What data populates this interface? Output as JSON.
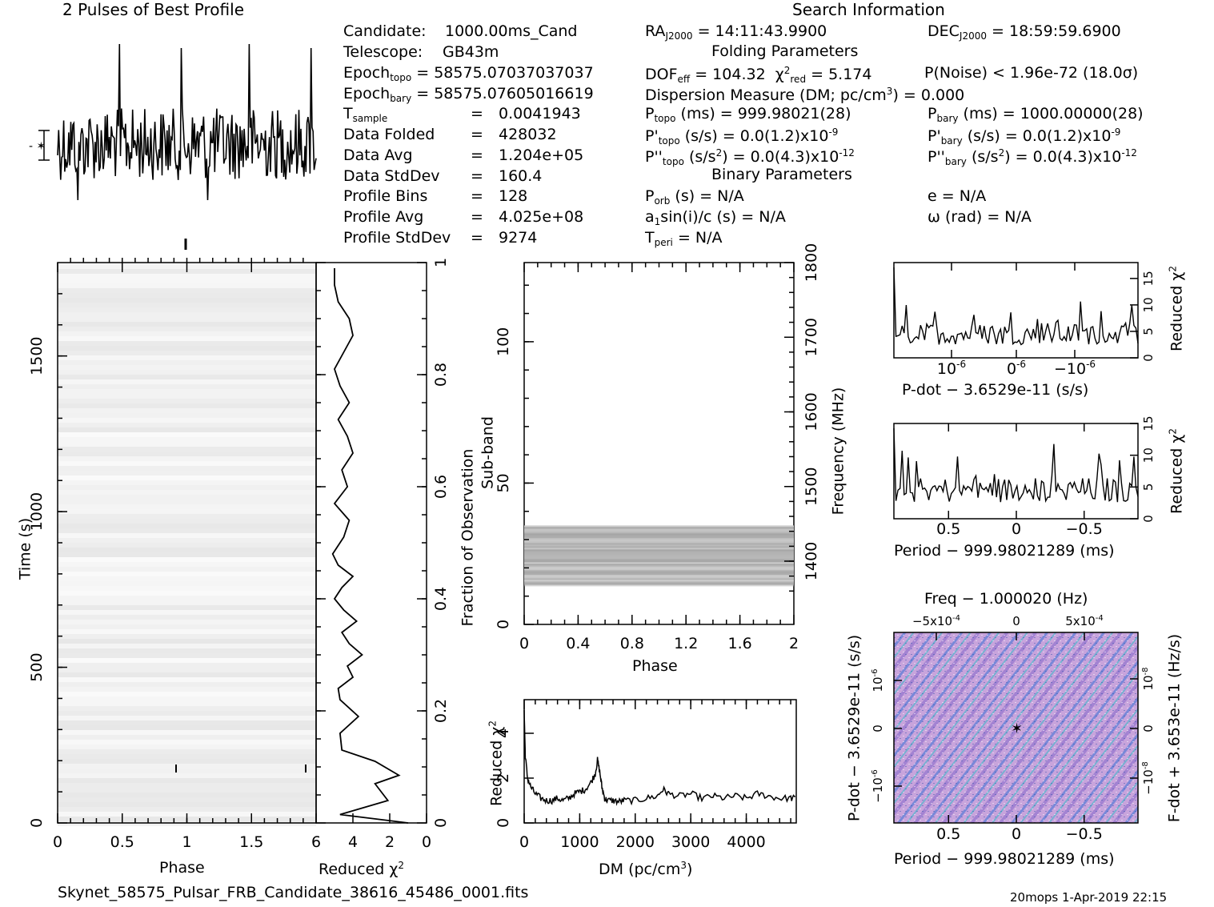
{
  "header": {
    "profile_title": "2 Pulses of Best Profile",
    "search_title": "Search Information",
    "folding_title": "Folding Parameters",
    "binary_title": "Binary Parameters"
  },
  "info_left": {
    "candidate_label": "Candidate:",
    "candidate": "1000.00ms_Cand",
    "telescope_label": "Telescope:",
    "telescope": "GB43m",
    "epoch_topo_label": "Epoch",
    "epoch_topo_sub": "topo",
    "epoch_topo": "= 58575.07037037037",
    "epoch_bary_label": "Epoch",
    "epoch_bary_sub": "bary",
    "epoch_bary": "= 58575.07605016619",
    "tsample_label": "T",
    "tsample_sub": "sample",
    "tsample": "0.0041943",
    "folded_label": "Data Folded",
    "folded": "428032",
    "avg_label": "Data Avg",
    "avg": "1.204e+05",
    "std_label": "Data StdDev",
    "std": "160.4",
    "bins_label": "Profile Bins",
    "bins": "128",
    "pavg_label": "Profile Avg",
    "pavg": "4.025e+08",
    "pstd_label": "Profile StdDev",
    "pstd": "9274",
    "eq": "="
  },
  "info_mid": {
    "ra": "RA",
    "ra_sub": "J2000",
    "ra_val": "= 14:11:43.9900",
    "dof": "DOF",
    "dof_sub": "eff",
    "dof_val": "= 104.32",
    "chi": "χ",
    "chi_sup": "2",
    "chi_sub": "red",
    "chi_val": "= 5.174",
    "dm": "Dispersion Measure (DM; pc/cm",
    "dm_sup": "3",
    "dm_val": ") = 0.000",
    "ptopo": "P",
    "ptopo_sub": "topo",
    "ptopo_val": "(ms) =  999.98021(28)",
    "pdtopo": "P'",
    "pdtopo_sub": "topo",
    "pdtopo_val": "(s/s) = 0.0(1.2)x10",
    "pdtopo_sup": "-9",
    "pddtopo": "P''",
    "pddtopo_sub": "topo",
    "pddtopo_val": "(s/s",
    "pddtopo_sq": "2",
    "pddtopo_val2": ") = 0.0(4.3)x10",
    "pddtopo_sup": "-12",
    "porb": "P",
    "porb_sub": "orb",
    "porb_val": "(s) = N/A",
    "a1": "a",
    "a1_sub": "1",
    "a1_val": "sin(i)/c (s) = N/A",
    "tperi": "T",
    "tperi_sub": "peri",
    "tperi_val": "= N/A"
  },
  "info_right": {
    "dec": "DEC",
    "dec_sub": "J2000",
    "dec_val": "= 18:59:59.6900",
    "pnoise": "P(Noise) < 1.96e-72  (18.0σ)",
    "pbary": "P",
    "pbary_sub": "bary",
    "pbary_val": "(ms) =  1000.00000(28)",
    "pdbary": "P'",
    "pdbary_sub": "bary",
    "pdbary_val": "(s/s) = 0.0(1.2)x10",
    "pdbary_sup": "-9",
    "pddbary": "P''",
    "pddbary_sub": "bary",
    "pddbary_val": "(s/s",
    "pddbary_sq": "2",
    "pddbary_val2": ") = 0.0(4.3)x10",
    "pddbary_sup": "-12",
    "ecc": "e = N/A",
    "omega": "ω (rad) = N/A"
  },
  "footer": {
    "filename": "Skynet_58575_Pulsar_FRB_Candidate_38616_45486_0001.fits",
    "stamp": "20mops  1-Apr-2019 22:15"
  },
  "chart_data": [
    {
      "type": "line",
      "id": "profile",
      "title": "2 Pulses of Best Profile",
      "x_range": [
        0,
        2
      ],
      "note": "noise-like pulse profile repeated twice"
    },
    {
      "type": "heatmap",
      "id": "time-phase",
      "xlabel": "Phase",
      "ylabel": "Time (s)",
      "xlim": [
        0,
        2
      ],
      "ylim": [
        0,
        1800
      ],
      "xticks": [
        "0",
        "0.5",
        "1",
        "1.5"
      ],
      "yticks": [
        "0",
        "500",
        "1000",
        "1500"
      ],
      "right_ylabel": "Fraction of Observation",
      "right_yticks": [
        "0",
        "0.2",
        "0.4",
        "0.6",
        "0.8",
        "1"
      ]
    },
    {
      "type": "line",
      "id": "time-chi2",
      "xlabel": "Reduced χ",
      "xlabel_sup": "2",
      "xlim": [
        6,
        0
      ],
      "xticks": [
        "6",
        "4",
        "2",
        "0"
      ],
      "x": [
        5.0,
        5.0,
        4.8,
        4.2,
        4.0,
        4.5,
        5.0,
        4.7,
        4.2,
        4.8,
        4.3,
        4.0,
        4.6,
        4.3,
        5.0,
        4.2,
        4.5,
        5.1,
        4.8,
        4.0,
        4.6,
        5.0,
        4.5,
        3.8,
        4.6,
        4.2,
        3.5,
        4.3,
        4.0,
        4.8,
        4.7,
        3.7,
        4.7,
        4.6,
        2.8,
        1.5,
        2.8,
        2.1,
        4.7,
        1.0
      ],
      "y": [
        0.99,
        0.96,
        0.93,
        0.9,
        0.87,
        0.84,
        0.81,
        0.78,
        0.75,
        0.72,
        0.69,
        0.66,
        0.63,
        0.6,
        0.57,
        0.54,
        0.51,
        0.48,
        0.46,
        0.44,
        0.42,
        0.4,
        0.38,
        0.36,
        0.34,
        0.32,
        0.3,
        0.28,
        0.26,
        0.24,
        0.22,
        0.19,
        0.16,
        0.13,
        0.11,
        0.085,
        0.07,
        0.04,
        0.015,
        0.0
      ]
    },
    {
      "type": "heatmap",
      "id": "subband-phase",
      "xlabel": "Phase",
      "ylabel": "Sub-band",
      "xlim": [
        0,
        2
      ],
      "ylim": [
        0,
        128
      ],
      "xticks": [
        "0",
        "0.4",
        "0.8",
        "1.2",
        "1.6",
        "2"
      ],
      "yticks": [
        "0",
        "50",
        "100"
      ],
      "right_ylabel": "Frequency (MHz)",
      "right_yticks": [
        "1400",
        "1500",
        "1600",
        "1700",
        "1800"
      ],
      "band": [
        14,
        35
      ]
    },
    {
      "type": "line",
      "id": "dm-chi2",
      "xlabel": "DM (pc/cm",
      "xlabel_sup": "3",
      "xlabel_end": ")",
      "ylabel": "Reduced χ",
      "ylabel_sup": "2",
      "xlim": [
        0,
        4900
      ],
      "ylim": [
        0,
        5.5
      ],
      "xticks": [
        "0",
        "1000",
        "2000",
        "3000",
        "4000"
      ],
      "yticks": [
        "0",
        "2",
        "4"
      ],
      "x": [
        0,
        20,
        60,
        120,
        200,
        300,
        400,
        500,
        600,
        700,
        800,
        900,
        1000,
        1100,
        1200,
        1280,
        1320,
        1360,
        1400,
        1450,
        1500,
        1600,
        1700,
        1800,
        2000,
        2200,
        2400,
        2500,
        2600,
        2800,
        3000,
        3200,
        3400,
        3600,
        3800,
        4000,
        4200,
        4400,
        4600,
        4800,
        4900
      ],
      "y": [
        5.0,
        3.0,
        2.0,
        1.6,
        1.3,
        1.1,
        1.0,
        1.0,
        1.1,
        1.0,
        1.1,
        1.3,
        1.4,
        1.5,
        1.8,
        2.2,
        2.8,
        2.3,
        1.6,
        1.1,
        1.0,
        1.0,
        0.95,
        1.0,
        1.0,
        1.1,
        1.2,
        1.5,
        1.3,
        1.2,
        1.3,
        1.1,
        1.2,
        1.1,
        1.2,
        1.1,
        1.3,
        1.2,
        1.1,
        1.1,
        1.1
      ]
    },
    {
      "type": "line",
      "id": "pdot-chi2",
      "xlabel": "P-dot − 3.6529e-11 (s/s)",
      "ylabel": "Reduced χ",
      "ylabel_sup": "2",
      "xlim": [
        1.8e-06,
        -1.8e-06
      ],
      "ylim": [
        0,
        18
      ],
      "xticks": [
        "10",
        "0",
        "−10"
      ],
      "xtick_sup": "-6",
      "yticks": [
        "0",
        "5",
        "10",
        "15"
      ]
    },
    {
      "type": "line",
      "id": "period-chi2",
      "xlabel": "Period − 999.98021289 (ms)",
      "ylabel": "Reduced χ",
      "ylabel_sup": "2",
      "xlim": [
        0.9,
        -0.9
      ],
      "ylim": [
        0,
        15
      ],
      "xticks": [
        "0.5",
        "0",
        "−0.5"
      ],
      "yticks": [
        "0",
        "5",
        "10",
        "15"
      ]
    },
    {
      "type": "heatmap",
      "id": "p-pdot",
      "title": "Freq − 1.000020 (Hz)",
      "xlabel": "Period − 999.98021289 (ms)",
      "ylabel": "P-dot − 3.6529e-11 (s/s)",
      "right_ylabel": "F-dot + 3.653e-11 (Hz/s)",
      "xticks": [
        "0.5",
        "0",
        "−0.5"
      ],
      "top_xticks": [
        "−5x10",
        "0",
        "5x10"
      ],
      "top_xtick_sup": "-4",
      "yticks": [
        "10",
        "0",
        "−10"
      ],
      "ytick_sup": "-6",
      "right_yticks": [
        "10",
        "0",
        "−10"
      ],
      "right_ytick_sup": "-8"
    }
  ]
}
